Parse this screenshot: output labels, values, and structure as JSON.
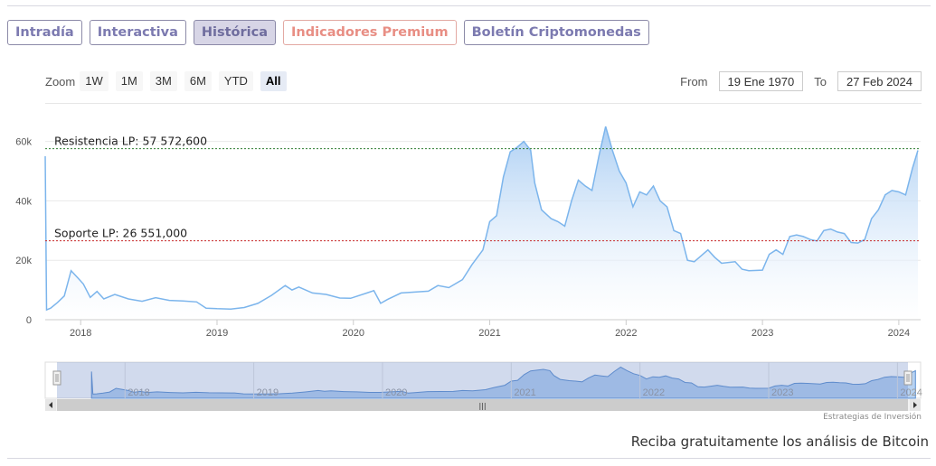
{
  "tabs": [
    {
      "label": "Intradía",
      "active": false,
      "premium": false
    },
    {
      "label": "Interactiva",
      "active": false,
      "premium": false
    },
    {
      "label": "Histórica",
      "active": true,
      "premium": false
    },
    {
      "label": "Indicadores Premium",
      "active": false,
      "premium": true
    },
    {
      "label": "Boletín Criptomonedas",
      "active": false,
      "premium": false
    }
  ],
  "zoom": {
    "label": "Zoom",
    "options": [
      "1W",
      "1M",
      "3M",
      "6M",
      "YTD",
      "All"
    ],
    "selected": "All"
  },
  "range": {
    "from_label": "From",
    "from_value": "19 Ene 1970",
    "to_label": "To",
    "to_value": "27 Feb 2024"
  },
  "chart_data": {
    "type": "area",
    "y_ticks": [
      "0",
      "20k",
      "40k",
      "60k"
    ],
    "ylim": [
      0,
      62000
    ],
    "x_ticks": [
      {
        "label": "2018",
        "x": 2018
      },
      {
        "label": "2019",
        "x": 2019
      },
      {
        "label": "2020",
        "x": 2020
      },
      {
        "label": "2021",
        "x": 2021
      },
      {
        "label": "2022",
        "x": 2022
      },
      {
        "label": "2023",
        "x": 2023
      },
      {
        "label": "2024",
        "x": 2024
      }
    ],
    "xlim": [
      2017.74,
      2024.16
    ],
    "series": [
      {
        "values": [
          [
            2017.74,
            55000
          ],
          [
            2017.75,
            3300
          ],
          [
            2017.78,
            3900
          ],
          [
            2017.83,
            5800
          ],
          [
            2017.88,
            8000
          ],
          [
            2017.93,
            16500
          ],
          [
            2017.98,
            14000
          ],
          [
            2018.02,
            12000
          ],
          [
            2018.07,
            7500
          ],
          [
            2018.12,
            9500
          ],
          [
            2018.17,
            7000
          ],
          [
            2018.25,
            8500
          ],
          [
            2018.35,
            7000
          ],
          [
            2018.45,
            6200
          ],
          [
            2018.55,
            7400
          ],
          [
            2018.65,
            6500
          ],
          [
            2018.75,
            6300
          ],
          [
            2018.85,
            6000
          ],
          [
            2018.92,
            3900
          ],
          [
            2019.0,
            3700
          ],
          [
            2019.1,
            3600
          ],
          [
            2019.2,
            4100
          ],
          [
            2019.3,
            5500
          ],
          [
            2019.4,
            8200
          ],
          [
            2019.5,
            11500
          ],
          [
            2019.55,
            10000
          ],
          [
            2019.6,
            11000
          ],
          [
            2019.7,
            9000
          ],
          [
            2019.8,
            8500
          ],
          [
            2019.9,
            7300
          ],
          [
            2019.98,
            7200
          ],
          [
            2020.1,
            9000
          ],
          [
            2020.15,
            9800
          ],
          [
            2020.2,
            5500
          ],
          [
            2020.25,
            6800
          ],
          [
            2020.35,
            9000
          ],
          [
            2020.45,
            9300
          ],
          [
            2020.55,
            9600
          ],
          [
            2020.62,
            11500
          ],
          [
            2020.7,
            10800
          ],
          [
            2020.8,
            13500
          ],
          [
            2020.87,
            18500
          ],
          [
            2020.95,
            23500
          ],
          [
            2021.0,
            33000
          ],
          [
            2021.05,
            35000
          ],
          [
            2021.1,
            48000
          ],
          [
            2021.15,
            56500
          ],
          [
            2021.2,
            58000
          ],
          [
            2021.25,
            60000
          ],
          [
            2021.3,
            57000
          ],
          [
            2021.33,
            46000
          ],
          [
            2021.38,
            37000
          ],
          [
            2021.45,
            34000
          ],
          [
            2021.5,
            33000
          ],
          [
            2021.55,
            31500
          ],
          [
            2021.6,
            40000
          ],
          [
            2021.65,
            47000
          ],
          [
            2021.7,
            45000
          ],
          [
            2021.75,
            43500
          ],
          [
            2021.8,
            55000
          ],
          [
            2021.85,
            65000
          ],
          [
            2021.9,
            57000
          ],
          [
            2021.95,
            50000
          ],
          [
            2022.0,
            46000
          ],
          [
            2022.05,
            38000
          ],
          [
            2022.1,
            43000
          ],
          [
            2022.15,
            42000
          ],
          [
            2022.2,
            45000
          ],
          [
            2022.25,
            40000
          ],
          [
            2022.3,
            38000
          ],
          [
            2022.35,
            30000
          ],
          [
            2022.4,
            29000
          ],
          [
            2022.45,
            20000
          ],
          [
            2022.5,
            19500
          ],
          [
            2022.55,
            21500
          ],
          [
            2022.6,
            23500
          ],
          [
            2022.65,
            21000
          ],
          [
            2022.7,
            19000
          ],
          [
            2022.8,
            19500
          ],
          [
            2022.85,
            17000
          ],
          [
            2022.9,
            16500
          ],
          [
            2023.0,
            16700
          ],
          [
            2023.05,
            22000
          ],
          [
            2023.1,
            23500
          ],
          [
            2023.15,
            22000
          ],
          [
            2023.2,
            28000
          ],
          [
            2023.25,
            28500
          ],
          [
            2023.3,
            28000
          ],
          [
            2023.35,
            27000
          ],
          [
            2023.4,
            26500
          ],
          [
            2023.45,
            30000
          ],
          [
            2023.5,
            30500
          ],
          [
            2023.55,
            29500
          ],
          [
            2023.6,
            29000
          ],
          [
            2023.65,
            26000
          ],
          [
            2023.7,
            25800
          ],
          [
            2023.75,
            27000
          ],
          [
            2023.8,
            34000
          ],
          [
            2023.85,
            37000
          ],
          [
            2023.9,
            42000
          ],
          [
            2023.95,
            43500
          ],
          [
            2024.0,
            43000
          ],
          [
            2024.05,
            42000
          ],
          [
            2024.1,
            51000
          ],
          [
            2024.14,
            57000
          ]
        ]
      }
    ],
    "annotations": [
      {
        "label": "Resistencia LP: 57 572,600",
        "value": 57572.6,
        "color": "#2e7d32"
      },
      {
        "label": "Soporte LP: 26 551,000",
        "value": 26551,
        "color": "#c62828"
      }
    ],
    "navigator": {
      "x_ticks": [
        "2018",
        "2019",
        "2020",
        "2021",
        "2022",
        "2023",
        "2024"
      ],
      "scroll_grip": "|||"
    },
    "colors": {
      "line": "#7cb5ec",
      "fill_top": "#a9cdf3",
      "fill_bottom": "#ffffff",
      "nav_fill": "#9fc3ee",
      "nav_mask": "rgba(102,133,194,0.3)"
    }
  },
  "credit": "Estrategias de Inversión",
  "promo": "Reciba gratuitamente los análisis de Bitcoin"
}
